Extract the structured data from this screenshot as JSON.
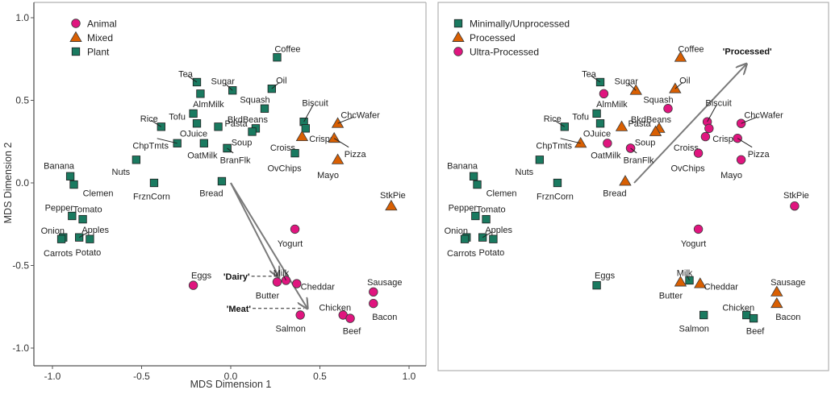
{
  "chart_data": [
    {
      "type": "scatter",
      "panel": "left",
      "title": "",
      "xlabel": "MDS Dimension 1",
      "ylabel": "MDS Dimension 2",
      "xlim": [
        -1.1,
        1.1
      ],
      "ylim": [
        -1.1,
        1.1
      ],
      "xticks": [
        -1.0,
        -0.5,
        0.0,
        0.5,
        1.0
      ],
      "xtick_labels": [
        "-1.0",
        "-0.5",
        "0.0",
        "0.5",
        "1.0"
      ],
      "yticks": [
        -1.0,
        -0.5,
        0.0,
        0.5,
        1.0
      ],
      "ytick_labels": [
        "-1.0",
        "-0.5",
        "0.0",
        "0.5",
        "1.0"
      ],
      "grid": false,
      "legend_position": "top-left",
      "legend": [
        {
          "name": "Animal",
          "shape": "circle",
          "color": "#e0157f"
        },
        {
          "name": "Mixed",
          "shape": "triangle",
          "color": "#d95f02"
        },
        {
          "name": "Plant",
          "shape": "square",
          "color": "#1a7a60"
        }
      ],
      "points": [
        {
          "label": "Tea",
          "x": -0.19,
          "y": 0.61,
          "group": "Plant"
        },
        {
          "label": "AlmMilk",
          "x": -0.17,
          "y": 0.54,
          "group": "Plant"
        },
        {
          "label": "Sugar",
          "x": 0.01,
          "y": 0.56,
          "group": "Plant"
        },
        {
          "label": "Coffee",
          "x": 0.26,
          "y": 0.76,
          "group": "Plant"
        },
        {
          "label": "Oil",
          "x": 0.23,
          "y": 0.57,
          "group": "Plant"
        },
        {
          "label": "Squash",
          "x": 0.19,
          "y": 0.45,
          "group": "Plant"
        },
        {
          "label": "BkdBeans",
          "x": 0.14,
          "y": 0.33,
          "group": "Plant"
        },
        {
          "label": "",
          "x": 0.12,
          "y": 0.31,
          "group": "Plant"
        },
        {
          "label": "Pasta",
          "x": -0.07,
          "y": 0.34,
          "group": "Plant"
        },
        {
          "label": "Tofu",
          "x": -0.21,
          "y": 0.42,
          "group": "Plant"
        },
        {
          "label": "OJuice",
          "x": -0.19,
          "y": 0.36,
          "group": "Plant"
        },
        {
          "label": "Rice",
          "x": -0.39,
          "y": 0.34,
          "group": "Plant"
        },
        {
          "label": "ChpTmts",
          "x": -0.3,
          "y": 0.24,
          "group": "Plant"
        },
        {
          "label": "OatMilk",
          "x": -0.15,
          "y": 0.24,
          "group": "Plant"
        },
        {
          "label": "Soup",
          "x": -0.02,
          "y": 0.21,
          "group": "Plant"
        },
        {
          "label": "BranFlk",
          "x": -0.02,
          "y": 0.21,
          "group": "Plant"
        },
        {
          "label": "Biscuit",
          "x": 0.41,
          "y": 0.37,
          "group": "Plant"
        },
        {
          "label": "Crisps",
          "x": 0.42,
          "y": 0.33,
          "group": "Plant"
        },
        {
          "label": "Croiss",
          "x": 0.4,
          "y": 0.28,
          "group": "Mixed"
        },
        {
          "label": "OvChips",
          "x": 0.36,
          "y": 0.18,
          "group": "Plant"
        },
        {
          "label": "ChcWafer",
          "x": 0.6,
          "y": 0.36,
          "group": "Mixed"
        },
        {
          "label": "Pizza",
          "x": 0.58,
          "y": 0.27,
          "group": "Mixed"
        },
        {
          "label": "Mayo",
          "x": 0.6,
          "y": 0.14,
          "group": "Mixed"
        },
        {
          "label": "Nuts",
          "x": -0.53,
          "y": 0.14,
          "group": "Plant"
        },
        {
          "label": "FrznCorn",
          "x": -0.43,
          "y": 0.0,
          "group": "Plant"
        },
        {
          "label": "Bread",
          "x": -0.05,
          "y": 0.01,
          "group": "Plant"
        },
        {
          "label": "Banana",
          "x": -0.9,
          "y": 0.04,
          "group": "Plant"
        },
        {
          "label": "Clemen",
          "x": -0.88,
          "y": -0.01,
          "group": "Plant"
        },
        {
          "label": "Pepper",
          "x": -0.89,
          "y": -0.2,
          "group": "Plant"
        },
        {
          "label": "Tomato",
          "x": -0.83,
          "y": -0.22,
          "group": "Plant"
        },
        {
          "label": "Onion",
          "x": -0.94,
          "y": -0.33,
          "group": "Plant"
        },
        {
          "label": "Carrots",
          "x": -0.95,
          "y": -0.34,
          "group": "Plant"
        },
        {
          "label": "Apples",
          "x": -0.85,
          "y": -0.33,
          "group": "Plant"
        },
        {
          "label": "Potato",
          "x": -0.79,
          "y": -0.34,
          "group": "Plant"
        },
        {
          "label": "StkPie",
          "x": 0.9,
          "y": -0.14,
          "group": "Mixed"
        },
        {
          "label": "Yogurt",
          "x": 0.36,
          "y": -0.28,
          "group": "Animal"
        },
        {
          "label": "Eggs",
          "x": -0.21,
          "y": -0.62,
          "group": "Animal"
        },
        {
          "label": "Butter",
          "x": 0.26,
          "y": -0.6,
          "group": "Animal"
        },
        {
          "label": "Milk",
          "x": 0.31,
          "y": -0.59,
          "group": "Animal"
        },
        {
          "label": "Cheddar",
          "x": 0.37,
          "y": -0.61,
          "group": "Animal"
        },
        {
          "label": "Salmon",
          "x": 0.39,
          "y": -0.8,
          "group": "Animal"
        },
        {
          "label": "Chicken",
          "x": 0.63,
          "y": -0.8,
          "group": "Animal"
        },
        {
          "label": "Beef",
          "x": 0.67,
          "y": -0.82,
          "group": "Animal"
        },
        {
          "label": "Sausage",
          "x": 0.8,
          "y": -0.66,
          "group": "Animal"
        },
        {
          "label": "Bacon",
          "x": 0.8,
          "y": -0.73,
          "group": "Animal"
        }
      ],
      "annotations": [
        {
          "text": "'Dairy'",
          "type": "vector",
          "from": [
            0.0,
            0.0
          ],
          "to": [
            0.27,
            -0.57
          ]
        },
        {
          "text": "'Meat'",
          "type": "vector",
          "from": [
            0.0,
            0.0
          ],
          "to": [
            0.43,
            -0.76
          ]
        }
      ]
    },
    {
      "type": "scatter",
      "panel": "right",
      "title": "",
      "xlabel": "",
      "ylabel": "",
      "xlim": [
        -1.1,
        1.1
      ],
      "ylim": [
        -1.1,
        1.1
      ],
      "grid": false,
      "legend_position": "top-left",
      "legend": [
        {
          "name": "Minimally/Unprocessed",
          "shape": "square",
          "color": "#1a7a60"
        },
        {
          "name": "Processed",
          "shape": "triangle",
          "color": "#d95f02"
        },
        {
          "name": "Ultra-Processed",
          "shape": "circle",
          "color": "#e0157f"
        }
      ],
      "points": [
        {
          "label": "Tea",
          "x": -0.19,
          "y": 0.61,
          "group": "Minimally/Unprocessed"
        },
        {
          "label": "AlmMilk",
          "x": -0.17,
          "y": 0.54,
          "group": "Ultra-Processed"
        },
        {
          "label": "Sugar",
          "x": 0.01,
          "y": 0.56,
          "group": "Processed"
        },
        {
          "label": "Coffee",
          "x": 0.26,
          "y": 0.76,
          "group": "Processed"
        },
        {
          "label": "Oil",
          "x": 0.23,
          "y": 0.57,
          "group": "Processed"
        },
        {
          "label": "Squash",
          "x": 0.19,
          "y": 0.45,
          "group": "Ultra-Processed"
        },
        {
          "label": "BkdBeans",
          "x": 0.14,
          "y": 0.33,
          "group": "Processed"
        },
        {
          "label": "",
          "x": 0.12,
          "y": 0.31,
          "group": "Processed"
        },
        {
          "label": "Pasta",
          "x": -0.07,
          "y": 0.34,
          "group": "Processed"
        },
        {
          "label": "Tofu",
          "x": -0.21,
          "y": 0.42,
          "group": "Minimally/Unprocessed"
        },
        {
          "label": "OJuice",
          "x": -0.19,
          "y": 0.36,
          "group": "Minimally/Unprocessed"
        },
        {
          "label": "Rice",
          "x": -0.39,
          "y": 0.34,
          "group": "Minimally/Unprocessed"
        },
        {
          "label": "ChpTmts",
          "x": -0.3,
          "y": 0.24,
          "group": "Processed"
        },
        {
          "label": "OatMilk",
          "x": -0.15,
          "y": 0.24,
          "group": "Ultra-Processed"
        },
        {
          "label": "Soup",
          "x": -0.02,
          "y": 0.21,
          "group": "Ultra-Processed"
        },
        {
          "label": "BranFlk",
          "x": -0.02,
          "y": 0.21,
          "group": "Ultra-Processed"
        },
        {
          "label": "Biscuit",
          "x": 0.41,
          "y": 0.37,
          "group": "Ultra-Processed"
        },
        {
          "label": "Crisps",
          "x": 0.42,
          "y": 0.33,
          "group": "Ultra-Processed"
        },
        {
          "label": "Croiss",
          "x": 0.4,
          "y": 0.28,
          "group": "Ultra-Processed"
        },
        {
          "label": "OvChips",
          "x": 0.36,
          "y": 0.18,
          "group": "Ultra-Processed"
        },
        {
          "label": "ChcWafer",
          "x": 0.6,
          "y": 0.36,
          "group": "Ultra-Processed"
        },
        {
          "label": "Pizza",
          "x": 0.58,
          "y": 0.27,
          "group": "Ultra-Processed"
        },
        {
          "label": "Mayo",
          "x": 0.6,
          "y": 0.14,
          "group": "Ultra-Processed"
        },
        {
          "label": "Nuts",
          "x": -0.53,
          "y": 0.14,
          "group": "Minimally/Unprocessed"
        },
        {
          "label": "FrznCorn",
          "x": -0.43,
          "y": 0.0,
          "group": "Minimally/Unprocessed"
        },
        {
          "label": "Bread",
          "x": -0.05,
          "y": 0.01,
          "group": "Processed"
        },
        {
          "label": "Banana",
          "x": -0.9,
          "y": 0.04,
          "group": "Minimally/Unprocessed"
        },
        {
          "label": "Clemen",
          "x": -0.88,
          "y": -0.01,
          "group": "Minimally/Unprocessed"
        },
        {
          "label": "Pepper",
          "x": -0.89,
          "y": -0.2,
          "group": "Minimally/Unprocessed"
        },
        {
          "label": "Tomato",
          "x": -0.83,
          "y": -0.22,
          "group": "Minimally/Unprocessed"
        },
        {
          "label": "Onion",
          "x": -0.94,
          "y": -0.33,
          "group": "Minimally/Unprocessed"
        },
        {
          "label": "Carrots",
          "x": -0.95,
          "y": -0.34,
          "group": "Minimally/Unprocessed"
        },
        {
          "label": "Apples",
          "x": -0.85,
          "y": -0.33,
          "group": "Minimally/Unprocessed"
        },
        {
          "label": "Potato",
          "x": -0.79,
          "y": -0.34,
          "group": "Minimally/Unprocessed"
        },
        {
          "label": "StkPie",
          "x": 0.9,
          "y": -0.14,
          "group": "Ultra-Processed"
        },
        {
          "label": "Yogurt",
          "x": 0.36,
          "y": -0.28,
          "group": "Ultra-Processed"
        },
        {
          "label": "Eggs",
          "x": -0.21,
          "y": -0.62,
          "group": "Minimally/Unprocessed"
        },
        {
          "label": "Butter",
          "x": 0.26,
          "y": -0.6,
          "group": "Processed"
        },
        {
          "label": "Milk",
          "x": 0.31,
          "y": -0.59,
          "group": "Minimally/Unprocessed"
        },
        {
          "label": "Cheddar",
          "x": 0.37,
          "y": -0.61,
          "group": "Processed"
        },
        {
          "label": "Salmon",
          "x": 0.39,
          "y": -0.8,
          "group": "Minimally/Unprocessed"
        },
        {
          "label": "Chicken",
          "x": 0.63,
          "y": -0.8,
          "group": "Minimally/Unprocessed"
        },
        {
          "label": "Beef",
          "x": 0.67,
          "y": -0.82,
          "group": "Minimally/Unprocessed"
        },
        {
          "label": "Sausage",
          "x": 0.8,
          "y": -0.66,
          "group": "Processed"
        },
        {
          "label": "Bacon",
          "x": 0.8,
          "y": -0.73,
          "group": "Processed"
        }
      ],
      "annotations": [
        {
          "text": "'Processed'",
          "type": "vector",
          "from": [
            0.0,
            0.0
          ],
          "to": [
            0.63,
            0.72
          ]
        }
      ]
    }
  ]
}
